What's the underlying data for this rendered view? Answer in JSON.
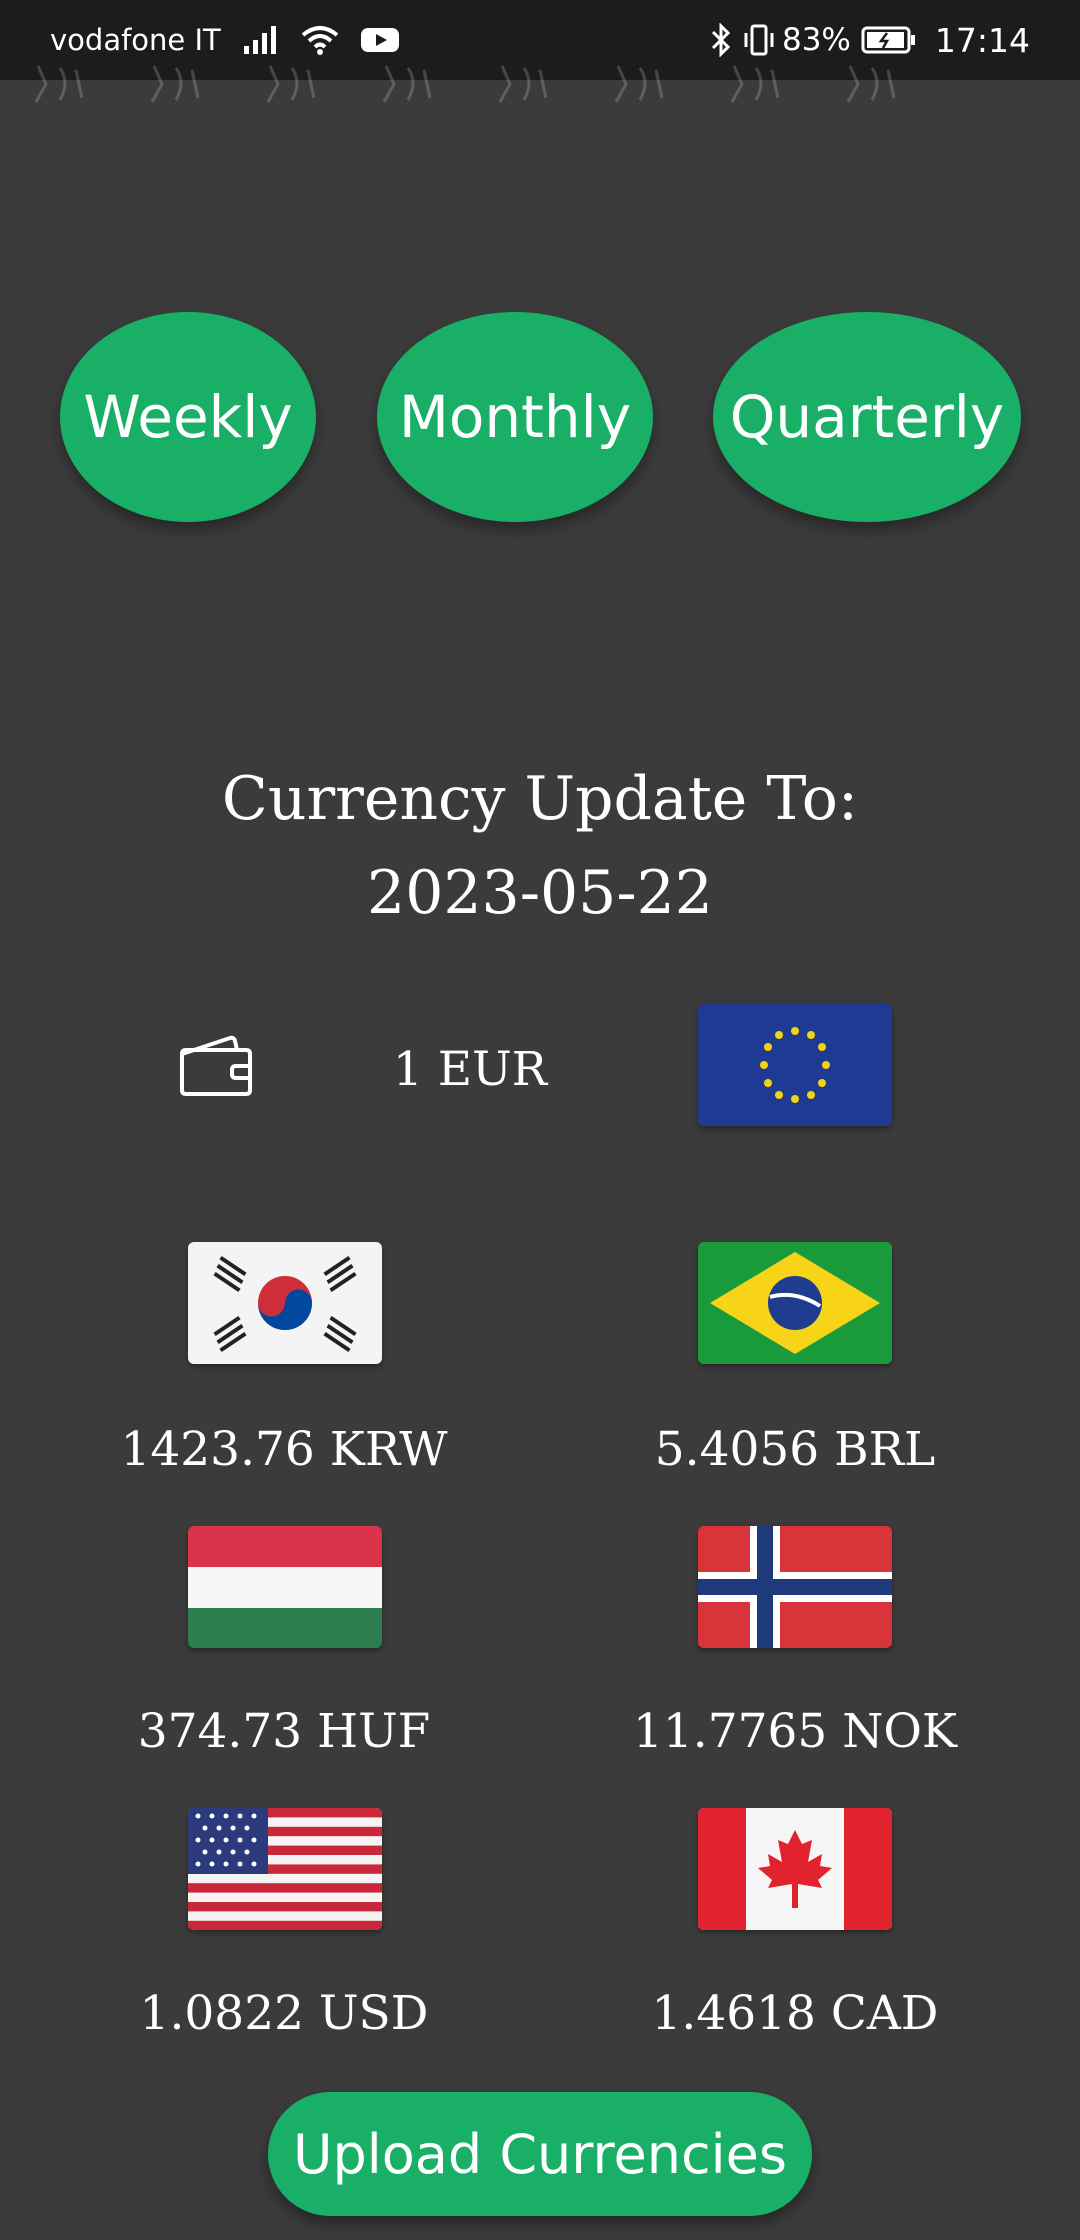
{
  "status_bar": {
    "carrier": "vodafone IT",
    "battery": "83%",
    "time": "17:14",
    "icons": [
      "signal-icon",
      "wifi-icon",
      "youtube-icon",
      "bluetooth-icon",
      "vibrate-icon",
      "battery-icon"
    ]
  },
  "period_buttons": {
    "weekly": "Weekly",
    "monthly": "Monthly",
    "quarterly": "Quarterly"
  },
  "update": {
    "title_line1": "Currency Update To:",
    "date": "2023-05-22"
  },
  "base": {
    "amount": "1 EUR",
    "icon": "wallet-icon",
    "flag": "eu-flag"
  },
  "rates": [
    {
      "label": "1423.76 KRW",
      "flag": "south-korea-flag"
    },
    {
      "label": "5.4056 BRL",
      "flag": "brazil-flag"
    },
    {
      "label": "374.73 HUF",
      "flag": "hungary-flag"
    },
    {
      "label": "11.7765 NOK",
      "flag": "norway-flag"
    },
    {
      "label": "1.0822 USD",
      "flag": "usa-flag"
    },
    {
      "label": "1.4618 CAD",
      "flag": "canada-flag"
    }
  ],
  "upload_button": "Upload Currencies",
  "colors": {
    "background": "#3b3b3b",
    "status_bar": "#1c1c1c",
    "accent_green": "#1aaf67",
    "text": "#ffffff"
  }
}
